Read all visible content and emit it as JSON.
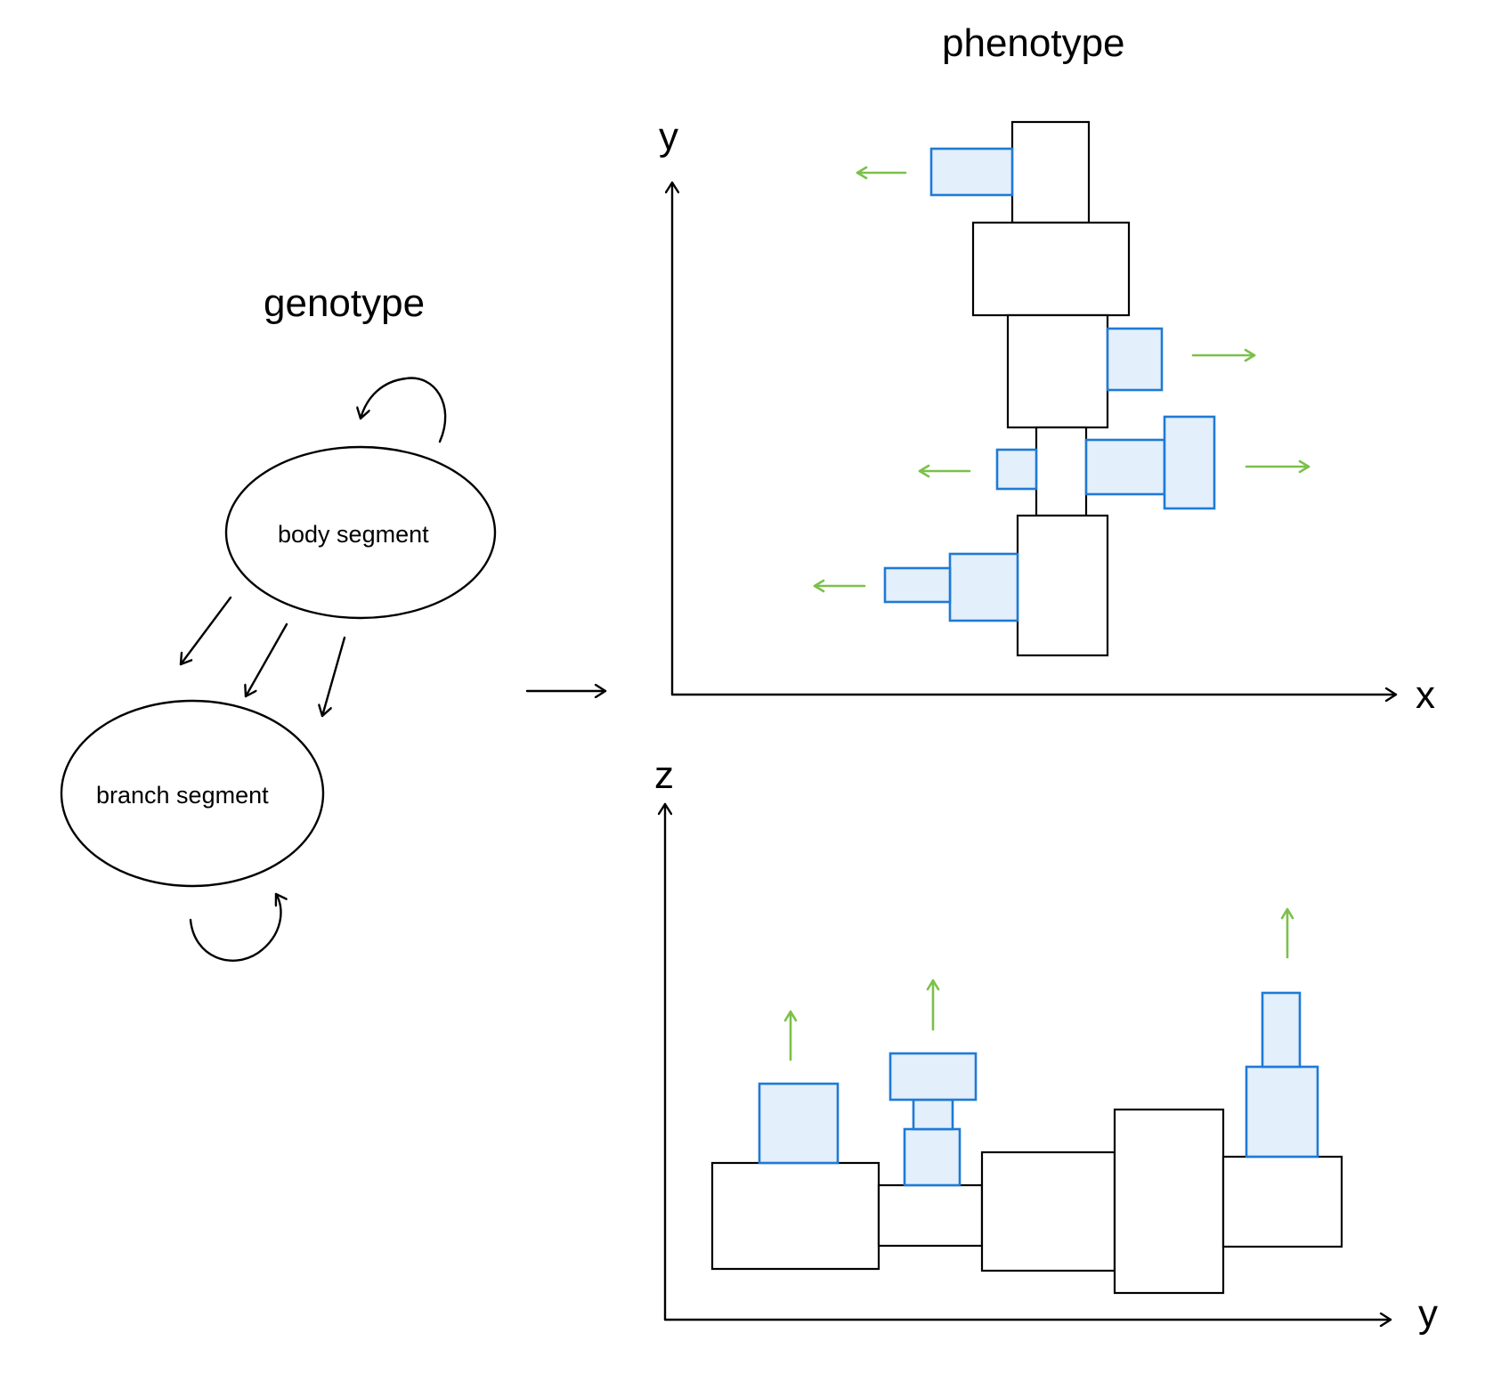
{
  "labels": {
    "genotype_title": "genotype",
    "phenotype_title": "phenotype",
    "body_segment": "body segment",
    "branch_segment": "branch segment"
  },
  "axes": {
    "top_view": {
      "x_label": "x",
      "y_label": "y"
    },
    "side_view": {
      "x_label": "y",
      "y_label": "z"
    }
  },
  "colors": {
    "line": "#000000",
    "branch_fill": "#e3effb",
    "branch_stroke": "#1f7ad6",
    "growth_arrow": "#7cc04a"
  }
}
